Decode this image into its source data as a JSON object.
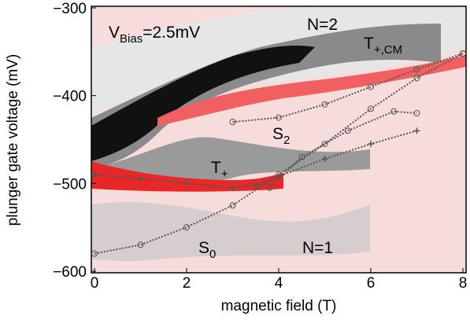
{
  "chart_data": {
    "type": "line",
    "xlabel": "magnetic field (T)",
    "ylabel": "plunger gate voltage (mV)",
    "xlim": [
      0,
      8
    ],
    "ylim": [
      -600,
      -300
    ],
    "xticks": [
      0,
      2,
      4,
      6,
      8
    ],
    "yticks": [
      {
        "value": -600,
        "label": "−600"
      },
      {
        "value": -500,
        "label": "−500"
      },
      {
        "value": -400,
        "label": "−400"
      },
      {
        "value": -300,
        "label": "−300"
      }
    ],
    "annotations": [
      {
        "main": "V",
        "sub": "Bias",
        "rest": "=2.5mV"
      },
      {
        "main": "N=2"
      },
      {
        "main": "T",
        "sub": "+,CM"
      },
      {
        "main": "S",
        "sub": "2"
      },
      {
        "main": "T",
        "sub": "+"
      },
      {
        "main": "S",
        "sub": "0"
      },
      {
        "main": "N=1"
      }
    ],
    "series": [
      {
        "color": "#555555",
        "marker": "circle",
        "x": [
          0,
          1,
          2,
          3,
          4,
          5,
          6,
          7,
          8
        ],
        "values": [
          -580,
          -570,
          -550,
          -525,
          -490,
          -455,
          -415,
          -380,
          -352
        ]
      },
      {
        "color": "#555555",
        "marker": "plus",
        "x": [
          0,
          1,
          2,
          3,
          3.5,
          4,
          5,
          6,
          7
        ],
        "values": [
          -490,
          -495,
          -500,
          -505,
          -502,
          -492,
          -472,
          -455,
          -440
        ]
      },
      {
        "color": "#555555",
        "marker": "circle",
        "x": [
          3.8,
          4.5,
          5.5,
          6.5,
          7
        ],
        "values": [
          -505,
          -470,
          -440,
          -418,
          -420
        ]
      },
      {
        "color": "#555555",
        "marker": "circle",
        "x": [
          3,
          4,
          5,
          6,
          7,
          8
        ],
        "values": [
          -430,
          -425,
          -410,
          -390,
          -370,
          -352
        ]
      }
    ]
  }
}
